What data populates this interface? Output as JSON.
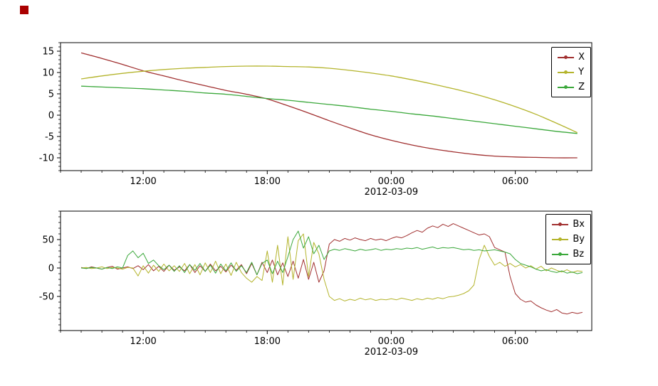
{
  "figure": {
    "background": "#ffffff",
    "status_square_color": "#aa0000"
  },
  "chart_data": [
    {
      "type": "line",
      "title": "",
      "date_label": "2012-03-09",
      "xlim": [
        8,
        33.7
      ],
      "ylim": [
        -13,
        17
      ],
      "x_ticks": [
        {
          "value": 12,
          "label": "12:00"
        },
        {
          "value": 18,
          "label": "18:00"
        },
        {
          "value": 24,
          "label": "00:00"
        },
        {
          "value": 30,
          "label": "06:00"
        }
      ],
      "x_minor_step": 1,
      "y_ticks": [
        {
          "value": 15,
          "label": "15"
        },
        {
          "value": 10,
          "label": "10"
        },
        {
          "value": 5,
          "label": "5"
        },
        {
          "value": 0,
          "label": "0"
        },
        {
          "value": -5,
          "label": "-5"
        },
        {
          "value": -10,
          "label": "-10"
        }
      ],
      "y_minor_step": 1,
      "x_start": 9,
      "x_step": 1,
      "smooth": true,
      "legend_position": "top-right",
      "series": [
        {
          "name": "X",
          "color": "#a13030",
          "values": [
            14.6,
            13.3,
            11.9,
            10.4,
            9.2,
            8.0,
            6.9,
            5.8,
            4.9,
            3.8,
            2.2,
            0.5,
            -1.3,
            -3.0,
            -4.6,
            -5.9,
            -7.0,
            -7.9,
            -8.6,
            -9.2,
            -9.6,
            -9.8,
            -9.9,
            -10.0,
            -10.0
          ]
        },
        {
          "name": "Y",
          "color": "#b4b42c",
          "values": [
            8.5,
            9.2,
            9.8,
            10.3,
            10.7,
            11.0,
            11.2,
            11.4,
            11.5,
            11.5,
            11.4,
            11.3,
            11.0,
            10.5,
            9.9,
            9.2,
            8.3,
            7.3,
            6.2,
            5.0,
            3.6,
            2.0,
            0.2,
            -1.9,
            -4.1
          ]
        },
        {
          "name": "Z",
          "color": "#3ba83b",
          "values": [
            6.8,
            6.6,
            6.4,
            6.2,
            5.9,
            5.6,
            5.2,
            4.9,
            4.4,
            3.9,
            3.5,
            3.0,
            2.5,
            2.0,
            1.4,
            0.9,
            0.3,
            -0.2,
            -0.8,
            -1.4,
            -2.0,
            -2.6,
            -3.2,
            -3.8,
            -4.3
          ]
        }
      ]
    },
    {
      "type": "line",
      "title": "",
      "date_label": "2012-03-09",
      "xlim": [
        8,
        33.7
      ],
      "ylim": [
        -110,
        100
      ],
      "x_ticks": [
        {
          "value": 12,
          "label": "12:00"
        },
        {
          "value": 18,
          "label": "18:00"
        },
        {
          "value": 24,
          "label": "00:00"
        },
        {
          "value": 30,
          "label": "06:00"
        }
      ],
      "x_minor_step": 1,
      "y_ticks": [
        {
          "value": 50,
          "label": "50"
        },
        {
          "value": 0,
          "label": "0"
        },
        {
          "value": -50,
          "label": "-50"
        }
      ],
      "y_minor_step": 10,
      "x_start": 9,
      "x_step": 0.25,
      "smooth": false,
      "legend_position": "top-right",
      "series": [
        {
          "name": "Bx",
          "color": "#a13030",
          "values": [
            1,
            -1,
            2,
            0,
            -2,
            1,
            3,
            -2,
            0,
            2,
            -1,
            4,
            -3,
            6,
            -5,
            3,
            -6,
            5,
            -4,
            2,
            -5,
            6,
            -8,
            4,
            -6,
            7,
            -5,
            3,
            -7,
            5,
            -4,
            6,
            -10,
            8,
            -12,
            10,
            -8,
            14,
            -12,
            9,
            -15,
            12,
            -18,
            15,
            -20,
            10,
            -25,
            -5,
            42,
            50,
            47,
            52,
            49,
            53,
            50,
            48,
            52,
            49,
            51,
            48,
            52,
            55,
            53,
            57,
            62,
            66,
            63,
            70,
            74,
            71,
            77,
            73,
            78,
            74,
            70,
            66,
            62,
            58,
            60,
            55,
            36,
            32,
            28,
            -15,
            -45,
            -55,
            -60,
            -58,
            -65,
            -70,
            -74,
            -77,
            -73,
            -79,
            -81,
            -78,
            -80,
            -78
          ]
        },
        {
          "name": "By",
          "color": "#b4b42c",
          "values": [
            0,
            1,
            -1,
            0,
            2,
            -1,
            1,
            0,
            -2,
            1,
            0,
            -14,
            4,
            -9,
            5,
            -6,
            7,
            -5,
            4,
            -6,
            8,
            -10,
            6,
            -12,
            9,
            -8,
            12,
            -10,
            7,
            -13,
            10,
            -8,
            -18,
            -25,
            -15,
            -22,
            30,
            -25,
            40,
            -30,
            55,
            -20,
            48,
            60,
            -15,
            45,
            25,
            -20,
            -50,
            -57,
            -54,
            -58,
            -55,
            -57,
            -53,
            -56,
            -54,
            -57,
            -55,
            -56,
            -54,
            -56,
            -53,
            -55,
            -57,
            -54,
            -56,
            -53,
            -55,
            -52,
            -54,
            -51,
            -50,
            -48,
            -45,
            -40,
            -30,
            15,
            40,
            20,
            5,
            10,
            3,
            8,
            2,
            6,
            0,
            4,
            -2,
            3,
            -5,
            0,
            -4,
            -7,
            -3,
            -8,
            -5,
            -6
          ]
        },
        {
          "name": "Bz",
          "color": "#3ba83b",
          "values": [
            0,
            -1,
            1,
            0,
            -2,
            1,
            -1,
            2,
            0,
            22,
            30,
            18,
            26,
            8,
            14,
            4,
            -3,
            5,
            -6,
            4,
            -8,
            6,
            -4,
            8,
            -6,
            5,
            -9,
            7,
            -5,
            9,
            -6,
            4,
            -8,
            10,
            -12,
            8,
            14,
            -10,
            12,
            -8,
            20,
            50,
            65,
            35,
            55,
            25,
            40,
            15,
            30,
            33,
            31,
            34,
            32,
            30,
            33,
            31,
            32,
            34,
            31,
            33,
            32,
            34,
            33,
            35,
            34,
            36,
            33,
            35,
            37,
            34,
            36,
            35,
            36,
            34,
            32,
            33,
            31,
            32,
            30,
            31,
            32,
            30,
            28,
            25,
            15,
            8,
            5,
            2,
            -2,
            -5,
            -3,
            -6,
            -8,
            -5,
            -9,
            -7,
            -10,
            -8
          ]
        }
      ]
    }
  ]
}
